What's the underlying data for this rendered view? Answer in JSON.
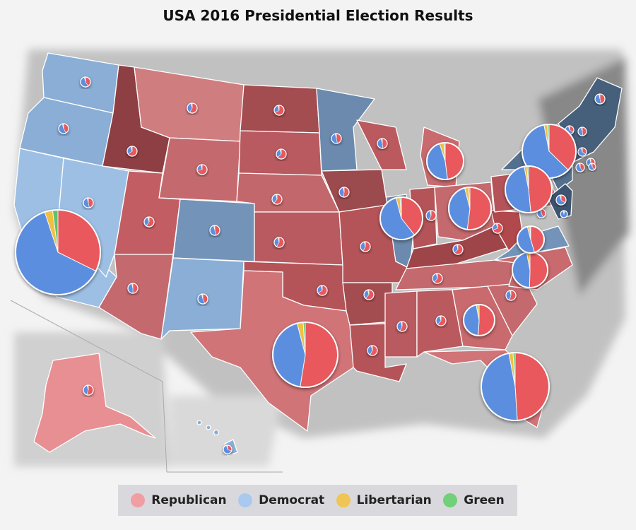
{
  "title": "USA 2016 Presidential Election Results",
  "colors": {
    "republican": "#e8585c",
    "democrat": "#5b8ee0",
    "libertarian": "#efc043",
    "green": "#5ec26b",
    "legend_republican": "#ef9ea3",
    "legend_democrat": "#a9c9ee",
    "legend_libertarian": "#efc555",
    "legend_green": "#72cf7a"
  },
  "legend": [
    {
      "label": "Republican",
      "color": "#ef9ea3"
    },
    {
      "label": "Democrat",
      "color": "#a9c9ee"
    },
    {
      "label": "Libertarian",
      "color": "#efc555"
    },
    {
      "label": "Green",
      "color": "#72cf7a"
    }
  ],
  "chart_data": {
    "type": "map-pie",
    "series": [
      {
        "name": "Republican"
      },
      {
        "name": "Democrat"
      },
      {
        "name": "Libertarian"
      },
      {
        "name": "Green"
      }
    ],
    "large_pies": [
      {
        "state": "California",
        "values": [
          32,
          62,
          3,
          2
        ]
      },
      {
        "state": "Texas",
        "values": [
          52,
          43,
          3,
          1
        ]
      },
      {
        "state": "Florida",
        "values": [
          49,
          48,
          2,
          1
        ]
      },
      {
        "state": "New York",
        "values": [
          37,
          59,
          2,
          1
        ]
      },
      {
        "state": "Pennsylvania",
        "values": [
          48,
          48,
          2,
          1
        ]
      },
      {
        "state": "Illinois",
        "values": [
          39,
          56,
          3,
          1
        ]
      },
      {
        "state": "Ohio",
        "values": [
          52,
          44,
          3,
          1
        ]
      },
      {
        "state": "Michigan",
        "values": [
          48,
          47,
          4,
          1
        ]
      },
      {
        "state": "Georgia",
        "values": [
          51,
          46,
          3,
          0
        ]
      },
      {
        "state": "North Carolina",
        "values": [
          50,
          46,
          3,
          0
        ]
      },
      {
        "state": "Virginia",
        "values": [
          45,
          50,
          3,
          1
        ]
      }
    ]
  }
}
